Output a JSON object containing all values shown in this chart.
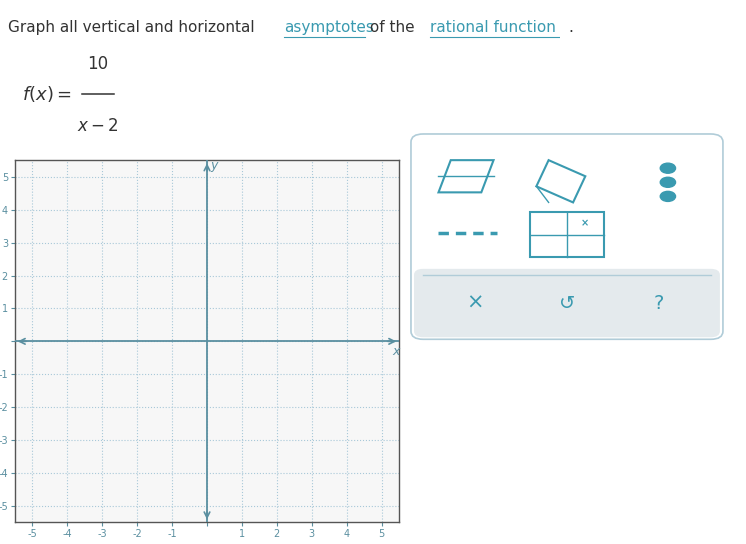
{
  "title_text": "Graph all vertical and horizontal ",
  "title_link1": "asymptotes",
  "title_mid": " of the ",
  "title_link2": "rational function",
  "title_end": ".",
  "graph_xlim": [
    -5.5,
    5.5
  ],
  "graph_ylim": [
    -5.5,
    5.5
  ],
  "xlabel": "x",
  "ylabel": "y",
  "background_color": "#ffffff",
  "graph_bg": "#f7f7f7",
  "grid_color": "#a8c8d8",
  "axis_color": "#5a8fa0",
  "tick_color": "#5a8fa0",
  "tick_fontsize": 7,
  "teal_color": "#3a9ab0",
  "text_color": "#333333",
  "panel_bg": "#ffffff",
  "panel_border": "#b0ccd8",
  "panel_bottom_bg": "#e4eaed",
  "icon_color": "#3a9ab0"
}
